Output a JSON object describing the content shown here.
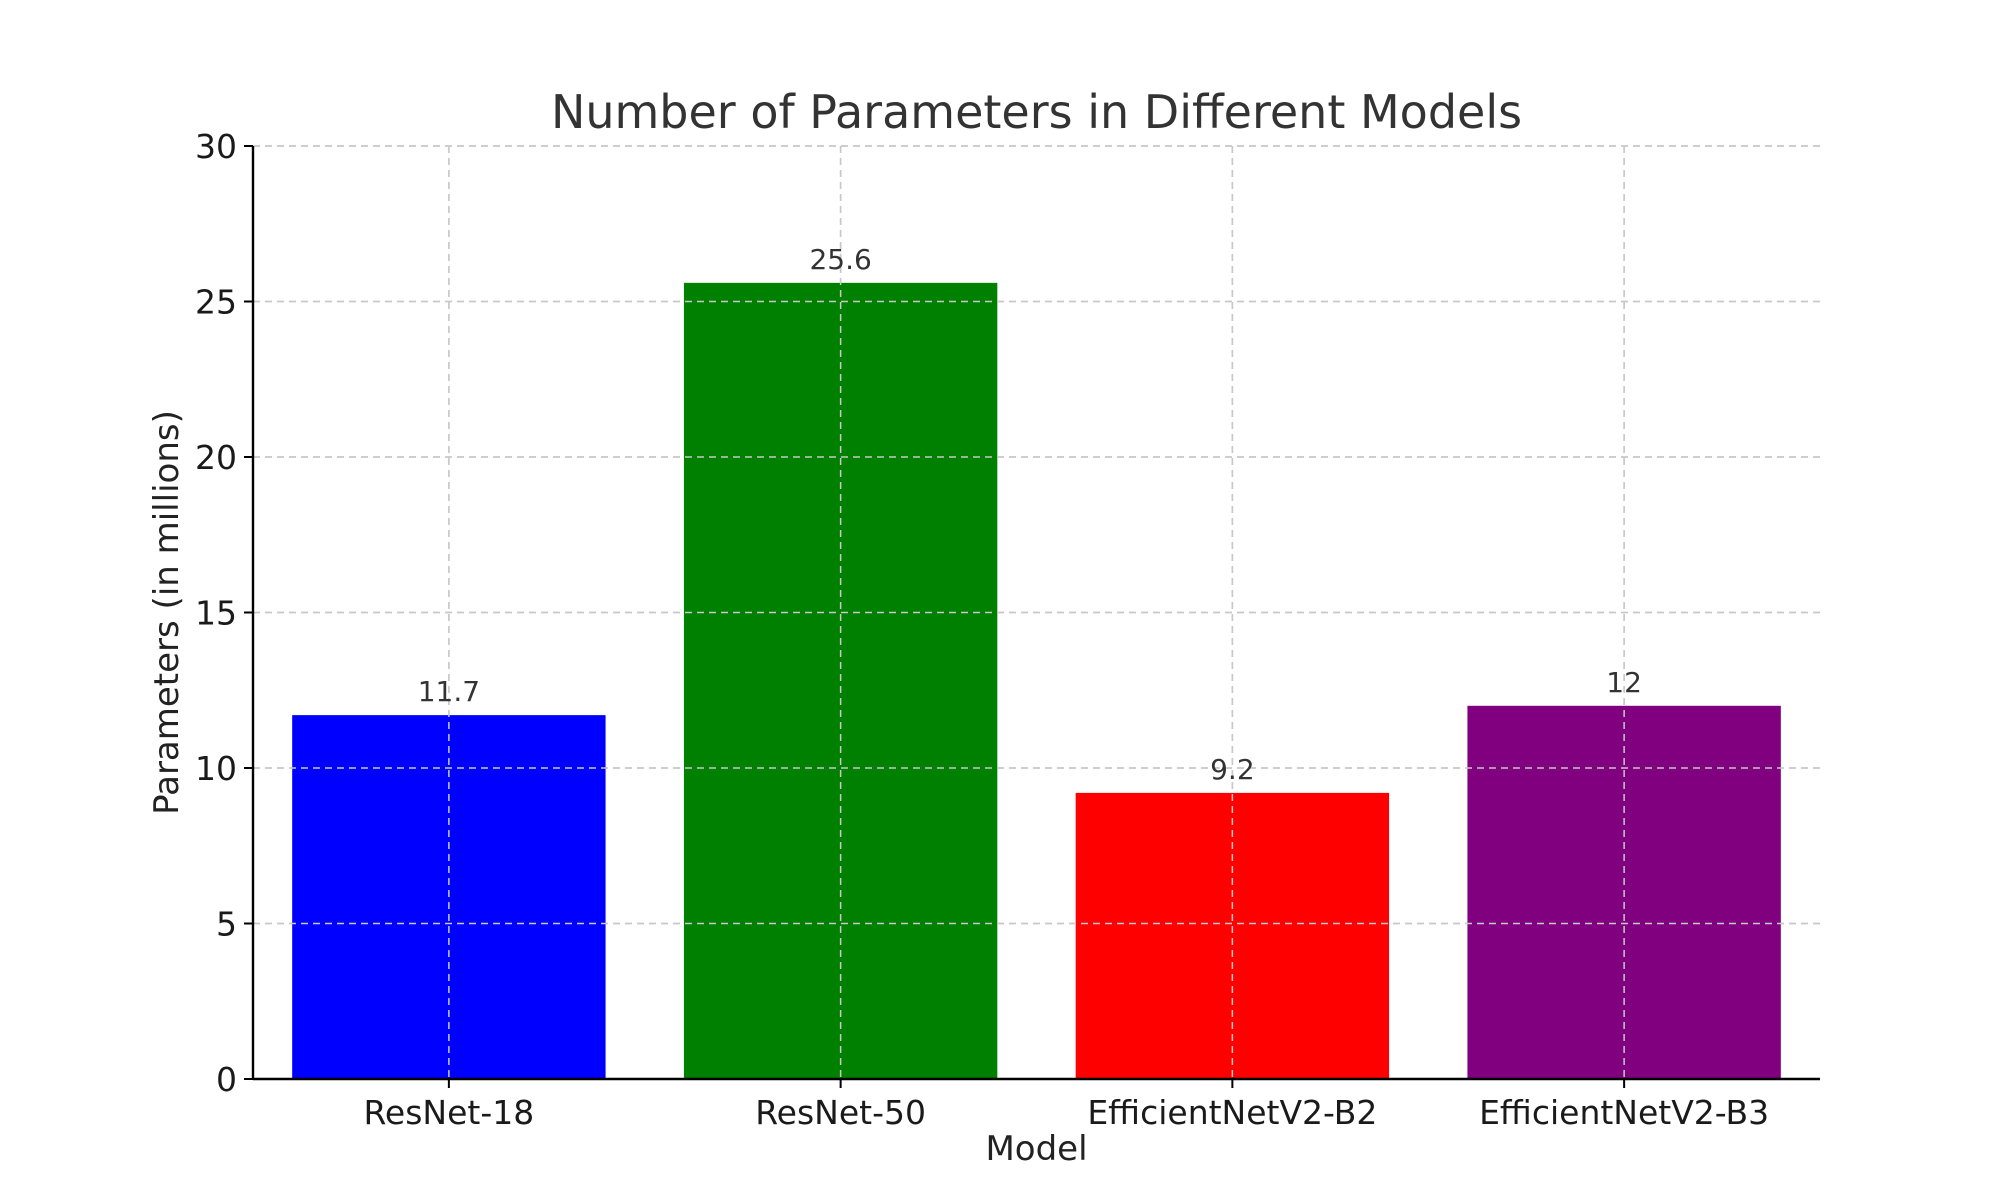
{
  "chart_data": {
    "type": "bar",
    "title": "Number of Parameters in Different Models",
    "xlabel": "Model",
    "ylabel": "Parameters (in millions)",
    "categories": [
      "ResNet-18",
      "ResNet-50",
      "EfficientNetV2-B2",
      "EfficientNetV2-B3"
    ],
    "values": [
      11.7,
      25.6,
      9.2,
      12
    ],
    "data_labels": [
      "11.7",
      "25.6",
      "9.2",
      "12"
    ],
    "bar_colors": [
      "#0000ff",
      "#008000",
      "#ff0000",
      "#800080"
    ],
    "ylim": [
      0,
      30
    ],
    "yticks": [
      0,
      5,
      10,
      15,
      20,
      25,
      30
    ],
    "grid": true
  }
}
